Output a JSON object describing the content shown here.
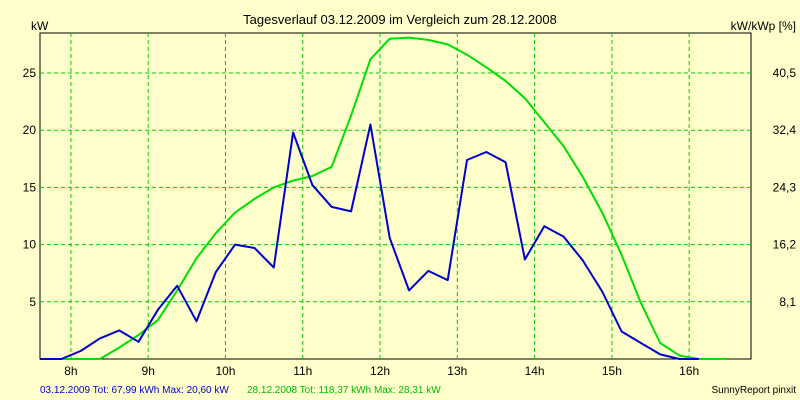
{
  "chart_data": {
    "type": "line",
    "title": "Tagesverlauf 03.12.2009 im Vergleich zum 28.12.2008",
    "ylabel_left": "kW",
    "ylabel_right": "kW/kWp [%]",
    "xlim": [
      7.6,
      16.8
    ],
    "ylim": [
      0,
      28.5
    ],
    "x_ticks": [
      8,
      9,
      10,
      11,
      12,
      13,
      14,
      15,
      16
    ],
    "x_tick_labels": [
      "8h",
      "9h",
      "10h",
      "11h",
      "12h",
      "13h",
      "14h",
      "15h",
      "16h"
    ],
    "y_ticks": [
      5,
      10,
      15,
      20,
      25
    ],
    "y_tick_labels": [
      "5",
      "10",
      "15",
      "20",
      "25"
    ],
    "y2_ticks": [
      8.1,
      16.2,
      24.3,
      32.4,
      40.5
    ],
    "y2_tick_labels": [
      "8,1",
      "16,2",
      "24,3",
      "32,4",
      "40,5"
    ],
    "y2_per_y": 1.62,
    "grid": true,
    "series": [
      {
        "name": "03.12.2009",
        "color": "#0000cc",
        "x": [
          7.6,
          7.875,
          8.125,
          8.375,
          8.625,
          8.875,
          9.125,
          9.375,
          9.625,
          9.875,
          10.125,
          10.375,
          10.625,
          10.875,
          11.125,
          11.375,
          11.625,
          11.875,
          12.125,
          12.375,
          12.625,
          12.875,
          13.125,
          13.375,
          13.625,
          13.875,
          14.125,
          14.375,
          14.625,
          14.875,
          15.125,
          15.375,
          15.625,
          15.875,
          16.125
        ],
        "y": [
          0,
          0,
          0.7,
          1.8,
          2.5,
          1.5,
          4.3,
          6.4,
          3.3,
          7.6,
          10.0,
          9.7,
          8.0,
          19.8,
          15.2,
          13.3,
          12.9,
          20.5,
          10.6,
          6.0,
          7.7,
          6.9,
          17.4,
          18.1,
          17.2,
          8.7,
          11.6,
          10.7,
          8.6,
          5.9,
          2.4,
          1.4,
          0.4,
          0.0,
          0.0
        ]
      },
      {
        "name": "28.12.2008",
        "color": "#00dd00",
        "x": [
          7.6,
          8.375,
          8.625,
          8.875,
          9.125,
          9.375,
          9.625,
          9.875,
          10.125,
          10.375,
          10.625,
          10.875,
          11.125,
          11.375,
          11.625,
          11.875,
          12.125,
          12.375,
          12.625,
          12.875,
          13.125,
          13.375,
          13.625,
          13.875,
          14.125,
          14.375,
          14.625,
          14.875,
          15.125,
          15.375,
          15.625,
          15.875,
          16.125,
          16.5
        ],
        "y": [
          0,
          0,
          1.0,
          2.1,
          3.4,
          6.0,
          8.8,
          11.0,
          12.8,
          14.0,
          15.0,
          15.6,
          16.0,
          16.8,
          21.3,
          26.2,
          28.0,
          28.1,
          27.9,
          27.5,
          26.6,
          25.5,
          24.3,
          22.8,
          20.7,
          18.6,
          15.9,
          12.8,
          9.1,
          4.9,
          1.4,
          0.3,
          0,
          0
        ]
      }
    ]
  },
  "footer": {
    "series1_text": "03.12.2009 Tot: 67,99 kWh Max: 20,60 kW",
    "series2_text": "28.12.2008 Tot: 118,37 kWh Max: 28,31 kW",
    "credit": "SunnyReport pinxit"
  }
}
